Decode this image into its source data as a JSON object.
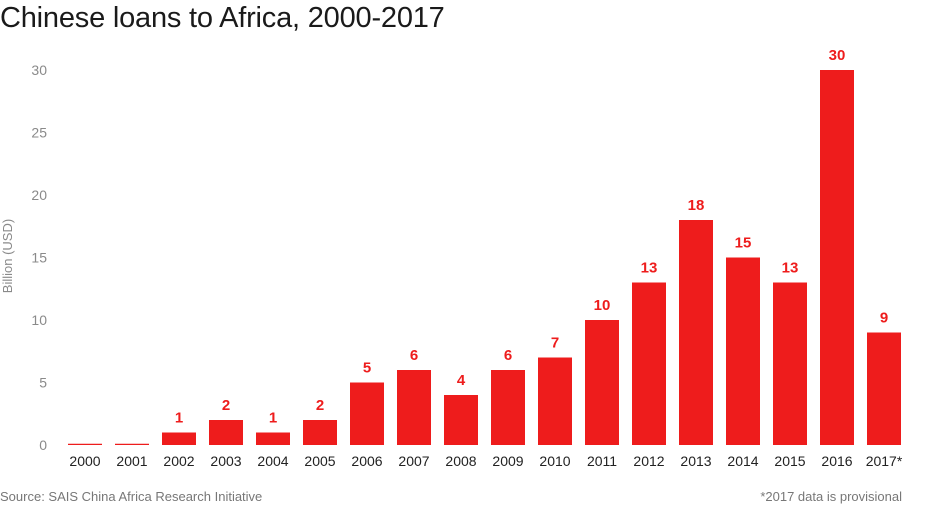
{
  "chart_data": {
    "type": "bar",
    "title": "Chinese loans to Africa, 2000-2017",
    "ylabel": "Billion (USD)",
    "xlabel": "",
    "ylim": [
      0,
      30
    ],
    "yticks": [
      0,
      5,
      10,
      15,
      20,
      25,
      30
    ],
    "grid": false,
    "categories": [
      "2000",
      "2001",
      "2002",
      "2003",
      "2004",
      "2005",
      "2006",
      "2007",
      "2008",
      "2009",
      "2010",
      "2011",
      "2012",
      "2013",
      "2014",
      "2015",
      "2016",
      "2017*"
    ],
    "values": [
      0.1,
      0.1,
      1,
      2,
      1,
      2,
      5,
      6,
      4,
      6,
      7,
      10,
      13,
      18,
      15,
      13,
      30,
      9
    ],
    "data_labels": [
      "",
      "",
      "1",
      "2",
      "1",
      "2",
      "5",
      "6",
      "4",
      "6",
      "7",
      "10",
      "13",
      "18",
      "15",
      "13",
      "30",
      "9"
    ],
    "bar_color": "#ee1c1c",
    "source": "Source: SAIS China Africa Research Initiative",
    "note": "*2017 data is provisional"
  }
}
